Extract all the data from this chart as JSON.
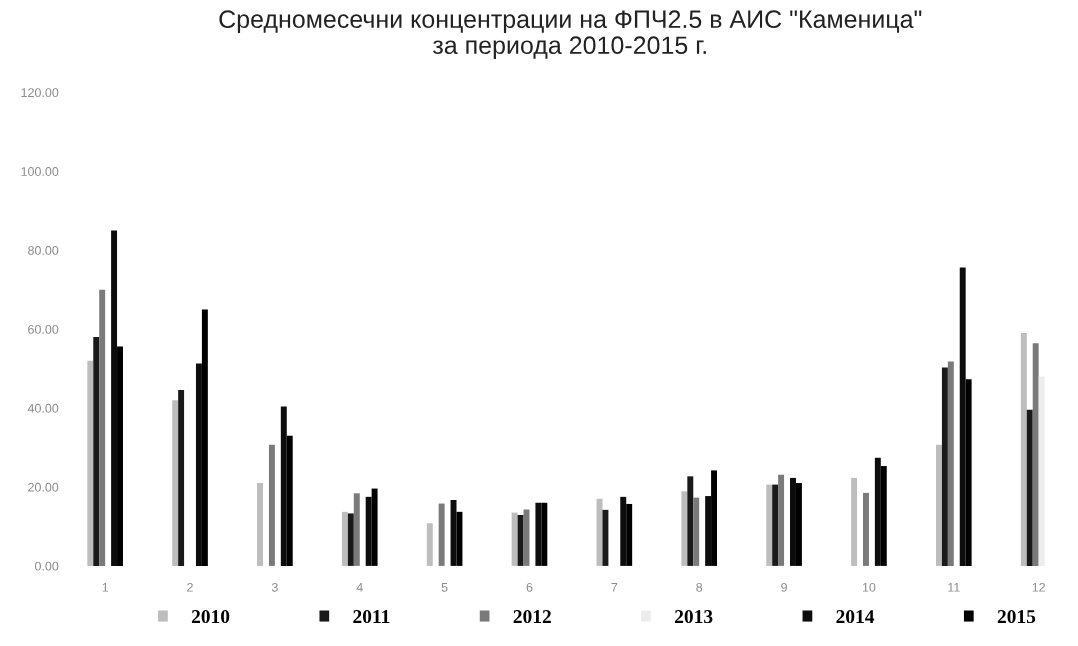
{
  "chart_data": {
    "type": "bar",
    "title": "Средномесечни концентрации на ФПЧ2.5 в АИС \"Каменица\"\nза периода 2010-2015 г.",
    "categories": [
      "1",
      "2",
      "3",
      "4",
      "5",
      "6",
      "7",
      "8",
      "9",
      "10",
      "11",
      "12"
    ],
    "series": [
      {
        "name": "2010",
        "color": "#bdbdbd",
        "values": [
          52,
          42,
          21,
          13.7,
          10.8,
          13.5,
          17,
          18.9,
          20.6,
          22.3,
          30.7,
          59
        ]
      },
      {
        "name": "2011",
        "color": "#1a1a1a",
        "values": [
          58,
          44.6,
          null,
          13.3,
          null,
          12.9,
          14.2,
          22.7,
          20.6,
          null,
          50.3,
          39.6
        ]
      },
      {
        "name": "2012",
        "color": "#7a7a7a",
        "values": [
          70,
          null,
          30.7,
          18.4,
          15.8,
          14.3,
          null,
          17.3,
          23.1,
          18.5,
          51.8,
          56.4
        ]
      },
      {
        "name": "2013",
        "color": "#ececec",
        "values": [
          null,
          null,
          null,
          null,
          null,
          null,
          null,
          null,
          null,
          null,
          null,
          48
        ]
      },
      {
        "name": "2014",
        "color": "#0d0d0d",
        "values": [
          85,
          51.3,
          40.4,
          17.5,
          16.7,
          16,
          17.5,
          17.7,
          22.3,
          27.4,
          75.6,
          null
        ]
      },
      {
        "name": "2015",
        "color": "#000000",
        "values": [
          55.6,
          65,
          33,
          19.6,
          13.7,
          16,
          15.7,
          24.2,
          21,
          25.3,
          47.3,
          null
        ]
      }
    ],
    "ylim": [
      0,
      120
    ],
    "yticks": [
      {
        "value": 0,
        "label": "0.00"
      },
      {
        "value": 20,
        "label": "20.00"
      },
      {
        "value": 40,
        "label": "40.00"
      },
      {
        "value": 60,
        "label": "60.00"
      },
      {
        "value": 80,
        "label": "80.00"
      },
      {
        "value": 100,
        "label": "100.00"
      },
      {
        "value": 120,
        "label": "120.00"
      }
    ],
    "grid": false,
    "legend": "bottom"
  }
}
